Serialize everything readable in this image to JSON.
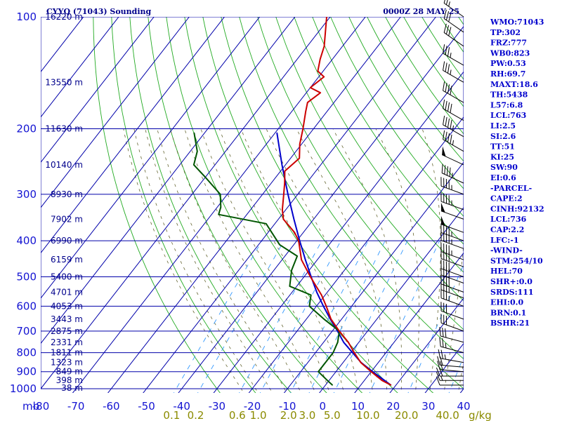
{
  "header": {
    "station": "CYYQ (71043) Sounding",
    "time": "0000Z 28 MAY 25"
  },
  "indices": [
    "WMO:71043",
    "TP:302",
    "FRZ:777",
    "WB0:823",
    "PW:0.53",
    "RH:69.7",
    "MAXT:18.6",
    "TH:5438",
    "L57:6.8",
    "LCL:763",
    "LI:2.5",
    "SI:2.6",
    "TT:51",
    "KI:25",
    "SW:90",
    "EI:0.6",
    "-PARCEL-",
    "CAPE:2",
    "CINH:92132",
    "LCL:736",
    "CAP:2.2",
    "LFC:-1",
    "-WIND-",
    "STM:254/10",
    "HEL:70",
    "SHR+:0.0",
    "SRDS:111",
    "EHI:0.0",
    "BRN:0.1",
    "BSHR:21"
  ],
  "colors": {
    "isobar": "#0000aa",
    "isotherm": "#0000aa",
    "dry_adiabat": "#22aa22",
    "moist_adiabat": "#666633",
    "mixing_ratio": "#3399ff",
    "temperature": "#cc0000",
    "dewpoint": "#005500",
    "parcel": "#0000cc"
  },
  "chart_data": {
    "type": "line",
    "title": "CYYQ (71043) Sounding",
    "subtitle": "0000Z 28 MAY 25",
    "xlabel": "",
    "ylabel": "mb",
    "xlim": [
      -80,
      40
    ],
    "ylim": [
      1000,
      100
    ],
    "y_scale": "log",
    "x_skew": "skew-T",
    "grid": true,
    "pressure_ticks": [
      "100",
      "200",
      "300",
      "400",
      "500",
      "600",
      "700",
      "800",
      "900",
      "1000"
    ],
    "temperature_ticks": [
      "-80",
      "-70",
      "-60",
      "-50",
      "-40",
      "-30",
      "-20",
      "-10",
      "0",
      "10",
      "20",
      "30",
      "40"
    ],
    "pressure_axis_label": "mb",
    "mixing_ratio_ticks": [
      "0.1",
      "0.2",
      "0.6",
      "1.0",
      "2.0",
      "3.0",
      "5.0",
      "10.0",
      "20.0",
      "40.0"
    ],
    "mixing_ratio_unit": "g/kg",
    "height_labels": [
      {
        "p": 100,
        "text": "16220 m"
      },
      {
        "p": 150,
        "text": "13550 m"
      },
      {
        "p": 200,
        "text": "11630 m"
      },
      {
        "p": 250,
        "text": "10140 m"
      },
      {
        "p": 300,
        "text": "8930 m"
      },
      {
        "p": 350,
        "text": "7902 m"
      },
      {
        "p": 400,
        "text": "6990 m"
      },
      {
        "p": 450,
        "text": "6159 m"
      },
      {
        "p": 500,
        "text": "5400 m"
      },
      {
        "p": 550,
        "text": "4701 m"
      },
      {
        "p": 600,
        "text": "4053 m"
      },
      {
        "p": 650,
        "text": "3443 m"
      },
      {
        "p": 700,
        "text": "2875 m"
      },
      {
        "p": 750,
        "text": "2331 m"
      },
      {
        "p": 800,
        "text": "1811 m"
      },
      {
        "p": 850,
        "text": "1323 m"
      },
      {
        "p": 900,
        "text": "849 m"
      },
      {
        "p": 950,
        "text": "398 m"
      },
      {
        "p": 1000,
        "text": "38 m"
      }
    ],
    "series": [
      {
        "key": "temperature",
        "points": [
          [
            978,
            18.6
          ],
          [
            950,
            15.0
          ],
          [
            900,
            10.0
          ],
          [
            850,
            5.0
          ],
          [
            800,
            1.0
          ],
          [
            750,
            -3.0
          ],
          [
            700,
            -8.0
          ],
          [
            650,
            -13.0
          ],
          [
            600,
            -17.2
          ],
          [
            560,
            -21.0
          ],
          [
            500,
            -28.2
          ],
          [
            450,
            -34.5
          ],
          [
            400,
            -39.5
          ],
          [
            380,
            -42.5
          ],
          [
            350,
            -48.6
          ],
          [
            330,
            -51.0
          ],
          [
            300,
            -54.0
          ],
          [
            280,
            -56.2
          ],
          [
            260,
            -58.8
          ],
          [
            240,
            -57.5
          ],
          [
            220,
            -60.5
          ],
          [
            200,
            -63.0
          ],
          [
            180,
            -66.0
          ],
          [
            170,
            -67.5
          ],
          [
            160,
            -66.0
          ],
          [
            155,
            -70.0
          ],
          [
            145,
            -68.5
          ],
          [
            140,
            -71.5
          ],
          [
            130,
            -73.5
          ],
          [
            120,
            -75.2
          ],
          [
            100,
            -81.0
          ]
        ]
      },
      {
        "key": "dewpoint",
        "points": [
          [
            978,
            2.0
          ],
          [
            950,
            -0.5
          ],
          [
            900,
            -5.0
          ],
          [
            850,
            -5.0
          ],
          [
            800,
            -5.0
          ],
          [
            750,
            -6.0
          ],
          [
            700,
            -8.0
          ],
          [
            650,
            -15.0
          ],
          [
            600,
            -22.0
          ],
          [
            560,
            -24.0
          ],
          [
            530,
            -32.0
          ],
          [
            480,
            -35.0
          ],
          [
            440,
            -36.5
          ],
          [
            410,
            -44.0
          ],
          [
            360,
            -52.5
          ],
          [
            340,
            -68.0
          ],
          [
            325,
            -69.0
          ],
          [
            300,
            -72.0
          ],
          [
            270,
            -80.0
          ],
          [
            250,
            -86.0
          ],
          [
            230,
            -88.0
          ],
          [
            205,
            -93.0
          ]
        ]
      },
      {
        "key": "parcel",
        "points": [
          [
            978,
            18.6
          ],
          [
            900,
            10.4
          ],
          [
            850,
            5.1
          ],
          [
            800,
            0.5
          ],
          [
            750,
            -4.3
          ],
          [
            700,
            -8.5
          ],
          [
            650,
            -13.2
          ],
          [
            600,
            -18.0
          ],
          [
            550,
            -23.0
          ],
          [
            500,
            -28.0
          ],
          [
            450,
            -33.4
          ],
          [
            400,
            -39.2
          ],
          [
            350,
            -45.6
          ],
          [
            300,
            -52.8
          ],
          [
            250,
            -61.0
          ],
          [
            205,
            -69.5
          ]
        ]
      }
    ],
    "wind_barbs": [
      {
        "p": 978,
        "dir": 270,
        "spd": 10
      },
      {
        "p": 950,
        "dir": 270,
        "spd": 15
      },
      {
        "p": 925,
        "dir": 270,
        "spd": 20
      },
      {
        "p": 900,
        "dir": 275,
        "spd": 20
      },
      {
        "p": 875,
        "dir": 275,
        "spd": 20
      },
      {
        "p": 850,
        "dir": 280,
        "spd": 25
      },
      {
        "p": 800,
        "dir": 285,
        "spd": 25
      },
      {
        "p": 750,
        "dir": 285,
        "spd": 30
      },
      {
        "p": 700,
        "dir": 290,
        "spd": 30
      },
      {
        "p": 650,
        "dir": 290,
        "spd": 30
      },
      {
        "p": 600,
        "dir": 290,
        "spd": 35
      },
      {
        "p": 570,
        "dir": 290,
        "spd": 35
      },
      {
        "p": 550,
        "dir": 290,
        "spd": 40
      },
      {
        "p": 520,
        "dir": 290,
        "spd": 40
      },
      {
        "p": 500,
        "dir": 290,
        "spd": 40
      },
      {
        "p": 470,
        "dir": 290,
        "spd": 40
      },
      {
        "p": 450,
        "dir": 290,
        "spd": 45
      },
      {
        "p": 420,
        "dir": 290,
        "spd": 45
      },
      {
        "p": 400,
        "dir": 290,
        "spd": 45
      },
      {
        "p": 380,
        "dir": 290,
        "spd": 50
      },
      {
        "p": 350,
        "dir": 290,
        "spd": 50
      },
      {
        "p": 330,
        "dir": 290,
        "spd": 45
      },
      {
        "p": 300,
        "dir": 290,
        "spd": 45
      },
      {
        "p": 280,
        "dir": 295,
        "spd": 45
      },
      {
        "p": 250,
        "dir": 295,
        "spd": 50
      },
      {
        "p": 230,
        "dir": 300,
        "spd": 45
      },
      {
        "p": 210,
        "dir": 300,
        "spd": 45
      },
      {
        "p": 190,
        "dir": 300,
        "spd": 40
      },
      {
        "p": 170,
        "dir": 300,
        "spd": 40
      },
      {
        "p": 150,
        "dir": 300,
        "spd": 35
      },
      {
        "p": 135,
        "dir": 300,
        "spd": 35
      },
      {
        "p": 120,
        "dir": 305,
        "spd": 30
      },
      {
        "p": 110,
        "dir": 305,
        "spd": 30
      },
      {
        "p": 100,
        "dir": 305,
        "spd": 25
      }
    ]
  }
}
